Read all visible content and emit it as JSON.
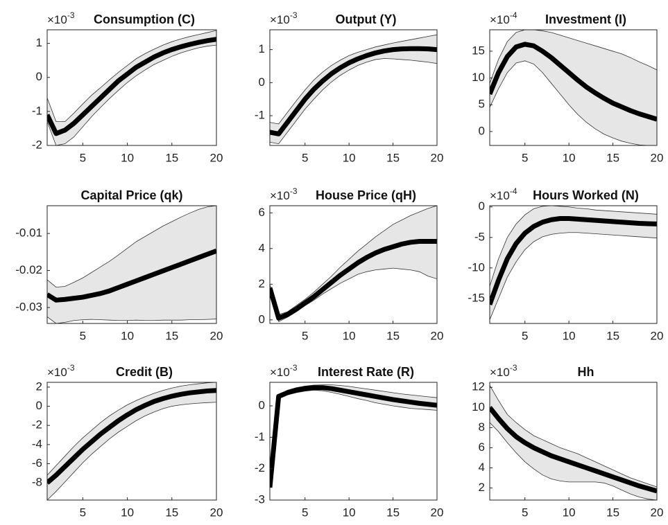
{
  "chart_data": [
    {
      "type": "line",
      "title": "Consumption (C)",
      "scale": {
        "base": "×10",
        "exponent": "-3"
      },
      "x": [
        1,
        2,
        3,
        4,
        5,
        6,
        7,
        8,
        9,
        10,
        11,
        12,
        13,
        14,
        15,
        16,
        17,
        18,
        19,
        20
      ],
      "values": [
        -1.1,
        -1.65,
        -1.55,
        -1.35,
        -1.1,
        -0.85,
        -0.6,
        -0.35,
        -0.1,
        0.1,
        0.3,
        0.45,
        0.6,
        0.72,
        0.82,
        0.9,
        0.97,
        1.03,
        1.08,
        1.12
      ],
      "lower": [
        -1.3,
        -2,
        -1.95,
        -1.75,
        -1.45,
        -1.15,
        -0.88,
        -0.62,
        -0.38,
        -0.15,
        0.05,
        0.22,
        0.38,
        0.5,
        0.62,
        0.72,
        0.8,
        0.87,
        0.92,
        0.95
      ],
      "upper": [
        -0.6,
        -1.3,
        -1.3,
        -1.05,
        -0.78,
        -0.52,
        -0.3,
        -0.07,
        0.15,
        0.35,
        0.55,
        0.7,
        0.83,
        0.95,
        1.05,
        1.13,
        1.2,
        1.26,
        1.32,
        1.38
      ],
      "xlim": [
        1,
        20
      ],
      "xticks": [
        5,
        10,
        15,
        20
      ],
      "ylim": [
        -2,
        1.4
      ],
      "yticks": [
        -2,
        -1,
        0,
        1
      ],
      "color": "#000000",
      "band_color": "#e6e6e6"
    },
    {
      "type": "line",
      "title": "Output (Y)",
      "scale": {
        "base": "×10",
        "exponent": "-3"
      },
      "x": [
        1,
        2,
        3,
        4,
        5,
        6,
        7,
        8,
        9,
        10,
        11,
        12,
        13,
        14,
        15,
        16,
        17,
        18,
        19,
        20
      ],
      "values": [
        -1.5,
        -1.55,
        -1.2,
        -0.85,
        -0.5,
        -0.2,
        0.05,
        0.27,
        0.45,
        0.6,
        0.72,
        0.82,
        0.9,
        0.96,
        1.0,
        1.02,
        1.03,
        1.03,
        1.02,
        1.0
      ],
      "lower": [
        -1.8,
        -1.85,
        -1.5,
        -1.15,
        -0.8,
        -0.5,
        -0.22,
        0.02,
        0.22,
        0.38,
        0.52,
        0.62,
        0.7,
        0.73,
        0.72,
        0.7,
        0.68,
        0.65,
        0.62,
        0.58
      ],
      "upper": [
        -1.2,
        -1.25,
        -0.9,
        -0.55,
        -0.22,
        0.08,
        0.32,
        0.52,
        0.68,
        0.82,
        0.92,
        1.0,
        1.08,
        1.14,
        1.2,
        1.25,
        1.3,
        1.35,
        1.4,
        1.45
      ],
      "xlim": [
        1,
        20
      ],
      "xticks": [
        5,
        10,
        15,
        20
      ],
      "ylim": [
        -1.9,
        1.6
      ],
      "yticks": [
        -1,
        0,
        1
      ],
      "color": "#000000",
      "band_color": "#e6e6e6"
    },
    {
      "type": "line",
      "title": "Investment (I)",
      "scale": {
        "base": "×10",
        "exponent": "-4"
      },
      "x": [
        1,
        2,
        3,
        4,
        5,
        6,
        7,
        8,
        9,
        10,
        11,
        12,
        13,
        14,
        15,
        16,
        17,
        18,
        19,
        20
      ],
      "values": [
        7,
        11,
        14,
        15.8,
        16.3,
        16,
        15,
        13.8,
        12.4,
        11,
        9.6,
        8.3,
        7.2,
        6.2,
        5.3,
        4.6,
        3.9,
        3.3,
        2.8,
        2.3
      ],
      "lower": [
        4.5,
        8,
        11,
        12.8,
        13.2,
        12.6,
        11,
        9,
        7,
        5,
        3.2,
        1.7,
        0.5,
        -0.5,
        -1.2,
        -1.8,
        -2.2,
        -2.5,
        -2.6,
        -2.6
      ],
      "upper": [
        9,
        13.5,
        16.8,
        18.5,
        19,
        19,
        18.8,
        18.5,
        18,
        17.5,
        17,
        16.5,
        16,
        15.5,
        15,
        14.5,
        13.8,
        13,
        12.3,
        11.5
      ],
      "xlim": [
        1,
        20
      ],
      "xticks": [
        5,
        10,
        15,
        20
      ],
      "ylim": [
        -2.6,
        19
      ],
      "yticks": [
        0,
        5,
        10,
        15
      ],
      "color": "#000000",
      "band_color": "#e6e6e6"
    },
    {
      "type": "line",
      "title": "Capital Price (qk)",
      "x": [
        1,
        2,
        3,
        4,
        5,
        6,
        7,
        8,
        9,
        10,
        11,
        12,
        13,
        14,
        15,
        16,
        17,
        18,
        19,
        20
      ],
      "values": [
        -0.0265,
        -0.028,
        -0.0278,
        -0.0275,
        -0.0272,
        -0.0267,
        -0.0262,
        -0.0255,
        -0.0246,
        -0.0237,
        -0.0228,
        -0.0219,
        -0.021,
        -0.0201,
        -0.0192,
        -0.0183,
        -0.0174,
        -0.0165,
        -0.0156,
        -0.0147
      ],
      "lower": [
        -0.0325,
        -0.0343,
        -0.034,
        -0.0335,
        -0.0333,
        -0.0332,
        -0.0333,
        -0.0334,
        -0.0335,
        -0.0335,
        -0.0334,
        -0.0335,
        -0.0335,
        -0.0334,
        -0.0334,
        -0.0334,
        -0.0333,
        -0.0333,
        -0.0332,
        -0.0331
      ],
      "upper": [
        -0.0225,
        -0.0245,
        -0.0243,
        -0.0232,
        -0.022,
        -0.0205,
        -0.019,
        -0.0175,
        -0.0158,
        -0.014,
        -0.0122,
        -0.0108,
        -0.0094,
        -0.008,
        -0.0068,
        -0.0056,
        -0.0045,
        -0.0035,
        -0.0028,
        -0.0025
      ],
      "xlim": [
        1,
        20
      ],
      "xticks": [
        5,
        10,
        15,
        20
      ],
      "ylim": [
        -0.0343,
        -0.0025
      ],
      "yticks": [
        -0.03,
        -0.02,
        -0.01
      ],
      "color": "#000000",
      "band_color": "#e6e6e6"
    },
    {
      "type": "line",
      "title": "House Price (qH)",
      "scale": {
        "base": "×10",
        "exponent": "-3"
      },
      "x": [
        1,
        2,
        3,
        4,
        5,
        6,
        7,
        8,
        9,
        10,
        11,
        12,
        13,
        14,
        15,
        16,
        17,
        18,
        19,
        20
      ],
      "values": [
        1.8,
        0.1,
        0.3,
        0.6,
        0.95,
        1.3,
        1.7,
        2.1,
        2.5,
        2.85,
        3.2,
        3.5,
        3.75,
        3.95,
        4.1,
        4.25,
        4.35,
        4.4,
        4.4,
        4.4
      ],
      "lower": [
        1.6,
        -0.1,
        0.15,
        0.45,
        0.8,
        1.1,
        1.45,
        1.75,
        2.05,
        2.3,
        2.55,
        2.7,
        2.8,
        2.85,
        2.9,
        2.85,
        2.8,
        2.7,
        2.45,
        2.3
      ],
      "upper": [
        2.0,
        0.3,
        0.45,
        0.8,
        1.15,
        1.55,
        2.0,
        2.45,
        2.95,
        3.4,
        3.85,
        4.25,
        4.65,
        5.0,
        5.35,
        5.6,
        5.85,
        6.05,
        6.25,
        6.4
      ],
      "xlim": [
        1,
        20
      ],
      "xticks": [
        5,
        10,
        15,
        20
      ],
      "ylim": [
        -0.2,
        6.4
      ],
      "yticks": [
        0,
        2,
        4,
        6
      ],
      "color": "#000000",
      "band_color": "#e6e6e6"
    },
    {
      "type": "line",
      "title": "Hours Worked (N)",
      "scale": {
        "base": "×10",
        "exponent": "-4"
      },
      "x": [
        1,
        2,
        3,
        4,
        5,
        6,
        7,
        8,
        9,
        10,
        11,
        12,
        13,
        14,
        15,
        16,
        17,
        18,
        19,
        20
      ],
      "values": [
        -16,
        -12,
        -8.5,
        -6,
        -4.3,
        -3.2,
        -2.5,
        -2.1,
        -1.9,
        -1.9,
        -2,
        -2.1,
        -2.2,
        -2.3,
        -2.4,
        -2.5,
        -2.6,
        -2.7,
        -2.75,
        -2.8
      ],
      "lower": [
        -18.5,
        -15,
        -11.5,
        -9,
        -7,
        -5.7,
        -4.9,
        -4.5,
        -4.3,
        -4.2,
        -4.2,
        -4.3,
        -4.4,
        -4.5,
        -4.6,
        -4.7,
        -4.8,
        -4.9,
        -5.0,
        -5.1
      ],
      "upper": [
        -13,
        -8.5,
        -5,
        -2.8,
        -1.3,
        -0.3,
        0.1,
        0.2,
        0.1,
        0,
        -0.2,
        -0.3,
        -0.5,
        -0.6,
        -0.7,
        -0.8,
        -0.9,
        -1.0,
        -1.1,
        -1.2
      ],
      "xlim": [
        1,
        20
      ],
      "xticks": [
        5,
        10,
        15,
        20
      ],
      "ylim": [
        -19.1,
        0.2
      ],
      "yticks": [
        -15,
        -10,
        -5,
        0
      ],
      "color": "#000000",
      "band_color": "#e6e6e6"
    },
    {
      "type": "line",
      "title": "Credit (B)",
      "scale": {
        "base": "×10",
        "exponent": "-3"
      },
      "x": [
        1,
        2,
        3,
        4,
        5,
        6,
        7,
        8,
        9,
        10,
        11,
        12,
        13,
        14,
        15,
        16,
        17,
        18,
        19,
        20
      ],
      "values": [
        -8,
        -7.2,
        -6.3,
        -5.4,
        -4.5,
        -3.7,
        -2.9,
        -2.2,
        -1.5,
        -0.9,
        -0.35,
        0.1,
        0.5,
        0.8,
        1.05,
        1.25,
        1.4,
        1.5,
        1.6,
        1.65
      ],
      "lower": [
        -9.8,
        -8.9,
        -7.9,
        -6.9,
        -5.9,
        -5.0,
        -4.2,
        -3.4,
        -2.7,
        -2.1,
        -1.5,
        -1.0,
        -0.6,
        -0.25,
        0.0,
        0.15,
        0.25,
        0.32,
        0.38,
        0.42
      ],
      "upper": [
        -7.2,
        -6.2,
        -5.2,
        -4.2,
        -3.3,
        -2.5,
        -1.7,
        -1.0,
        -0.4,
        0.15,
        0.6,
        1.0,
        1.35,
        1.65,
        1.9,
        2.1,
        2.25,
        2.35,
        2.45,
        2.5
      ],
      "xlim": [
        1,
        20
      ],
      "xticks": [
        5,
        10,
        15,
        20
      ],
      "ylim": [
        -9.8,
        2.5
      ],
      "yticks": [
        -8,
        -6,
        -4,
        -2,
        0,
        2
      ],
      "color": "#000000",
      "band_color": "#e6e6e6"
    },
    {
      "type": "line",
      "title": "Interest Rate (R)",
      "scale": {
        "base": "×10",
        "exponent": "-3"
      },
      "x": [
        1,
        2,
        3,
        4,
        5,
        6,
        7,
        8,
        9,
        10,
        11,
        12,
        13,
        14,
        15,
        16,
        17,
        18,
        19,
        20
      ],
      "values": [
        -2.6,
        0.3,
        0.42,
        0.5,
        0.55,
        0.58,
        0.58,
        0.55,
        0.5,
        0.45,
        0.4,
        0.35,
        0.3,
        0.25,
        0.2,
        0.16,
        0.12,
        0.08,
        0.05,
        0.02
      ],
      "lower": [
        -2.65,
        0.25,
        0.35,
        0.42,
        0.47,
        0.5,
        0.48,
        0.43,
        0.37,
        0.3,
        0.23,
        0.17,
        0.1,
        0.05,
        0,
        -0.04,
        -0.08,
        -0.1,
        -0.12,
        -0.14
      ],
      "upper": [
        -2.55,
        0.35,
        0.5,
        0.58,
        0.63,
        0.66,
        0.67,
        0.67,
        0.65,
        0.62,
        0.58,
        0.54,
        0.5,
        0.46,
        0.42,
        0.38,
        0.35,
        0.32,
        0.29,
        0.26
      ],
      "xlim": [
        1,
        20
      ],
      "xticks": [
        5,
        10,
        15,
        20
      ],
      "ylim": [
        -3,
        0.75
      ],
      "yticks": [
        -3,
        -2,
        -1,
        0
      ],
      "color": "#000000",
      "band_color": "#e6e6e6"
    },
    {
      "type": "line",
      "title": "Hh",
      "scale": {
        "base": "×10",
        "exponent": "-3"
      },
      "x": [
        1,
        2,
        3,
        4,
        5,
        6,
        7,
        8,
        9,
        10,
        11,
        12,
        13,
        14,
        15,
        16,
        17,
        18,
        19,
        20
      ],
      "values": [
        10,
        8.9,
        7.9,
        7.1,
        6.5,
        6,
        5.6,
        5.2,
        4.9,
        4.6,
        4.3,
        4.0,
        3.7,
        3.4,
        3.1,
        2.8,
        2.5,
        2.2,
        1.95,
        1.7
      ],
      "lower": [
        8.5,
        7.6,
        6.5,
        5.5,
        4.6,
        3.9,
        3.3,
        2.9,
        2.7,
        2.6,
        2.6,
        2.6,
        2.6,
        2.5,
        2.2,
        1.8,
        1.4,
        1.1,
        0.9,
        0.8
      ],
      "upper": [
        12.2,
        10.7,
        9.3,
        8.5,
        7.8,
        7.2,
        6.8,
        6.4,
        6.0,
        5.7,
        5.4,
        5.0,
        4.6,
        4.2,
        3.8,
        3.4,
        3.0,
        2.7,
        2.4,
        2.1
      ],
      "xlim": [
        1,
        20
      ],
      "xticks": [
        5,
        10,
        15,
        20
      ],
      "ylim": [
        0.8,
        12.5
      ],
      "yticks": [
        2,
        4,
        6,
        8,
        10,
        12
      ],
      "color": "#000000",
      "band_color": "#e6e6e6"
    }
  ]
}
